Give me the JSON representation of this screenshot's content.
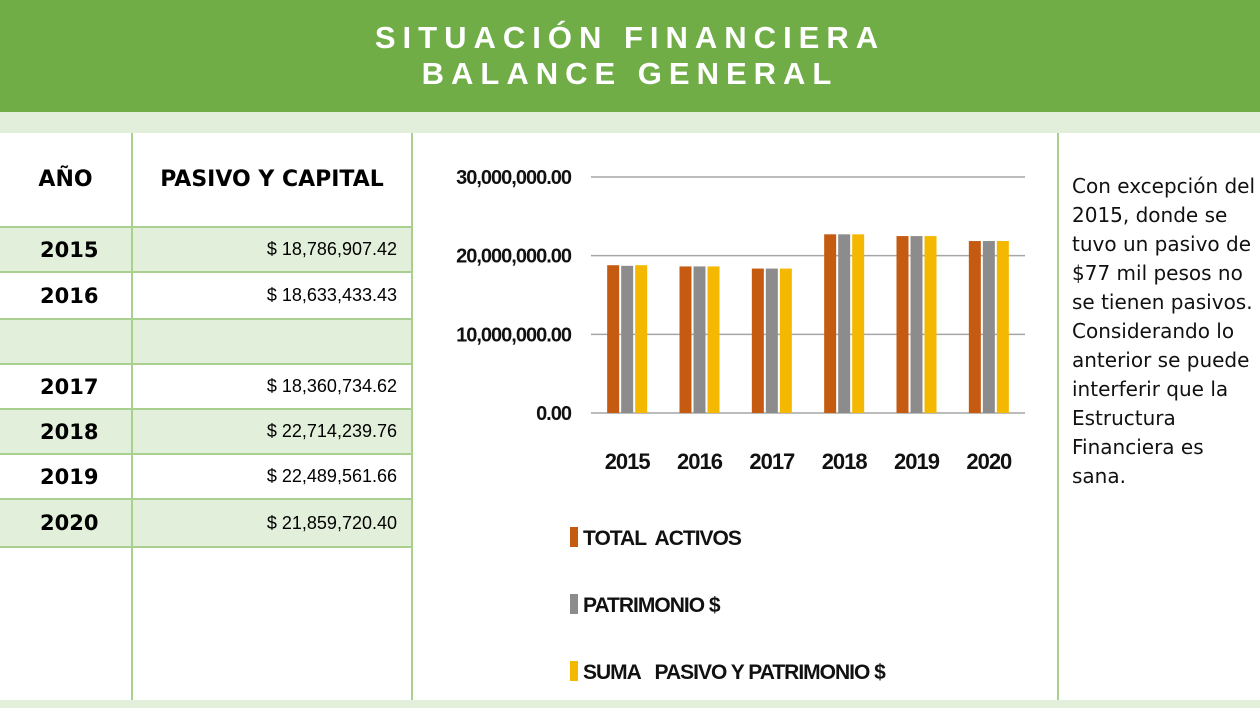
{
  "header": {
    "title": [
      "SITUACIÓN FINANCIERA",
      "BALANCE GENERAL"
    ]
  },
  "table": {
    "columns": [
      "AÑO",
      "PASIVO  Y CAPITAL"
    ],
    "rows": [
      [
        "2015",
        "$ 18,786,907.42"
      ],
      [
        "2016",
        "$ 18,633,433.43"
      ],
      [
        "2017",
        "$ 18,360,734.62"
      ],
      [
        "2018",
        "$ 22,714,239.76"
      ],
      [
        "2019",
        "$ 22,489,561.66"
      ],
      [
        "2020",
        "$ 21,859,720.40"
      ]
    ]
  },
  "chart_data": {
    "type": "bar",
    "categories": [
      "2015",
      "2016",
      "2017",
      "2018",
      "2019",
      "2020"
    ],
    "series": [
      {
        "name": "TOTAL  ACTIVOS",
        "color": "#c55a11",
        "values": [
          18786907,
          18633433,
          18360735,
          22714240,
          22489562,
          21859720
        ]
      },
      {
        "name": "PATRIMONIO $",
        "color": "#8c8c8c",
        "values": [
          18710000,
          18633433,
          18360735,
          22714240,
          22489562,
          21859720
        ]
      },
      {
        "name": "SUMA   PASIVO Y PATRIMONIO $",
        "color": "#f5b800",
        "values": [
          18786907,
          18633433,
          18360735,
          22714240,
          22489562,
          21859720
        ]
      }
    ],
    "ylim": [
      0,
      30000000
    ],
    "yticks": [
      {
        "value": 0,
        "label": "0.00"
      },
      {
        "value": 10000000,
        "label": "10,000,000.00"
      },
      {
        "value": 20000000,
        "label": "20,000,000.00"
      },
      {
        "value": 30000000,
        "label": "30,000,000.00"
      }
    ],
    "grid": true
  },
  "note": "Con excepción del 2015, donde se tuvo un pasivo de $77 mil pesos no se tienen pasivos. Considerando lo anterior se puede interferir que la Estructura Financiera es sana."
}
